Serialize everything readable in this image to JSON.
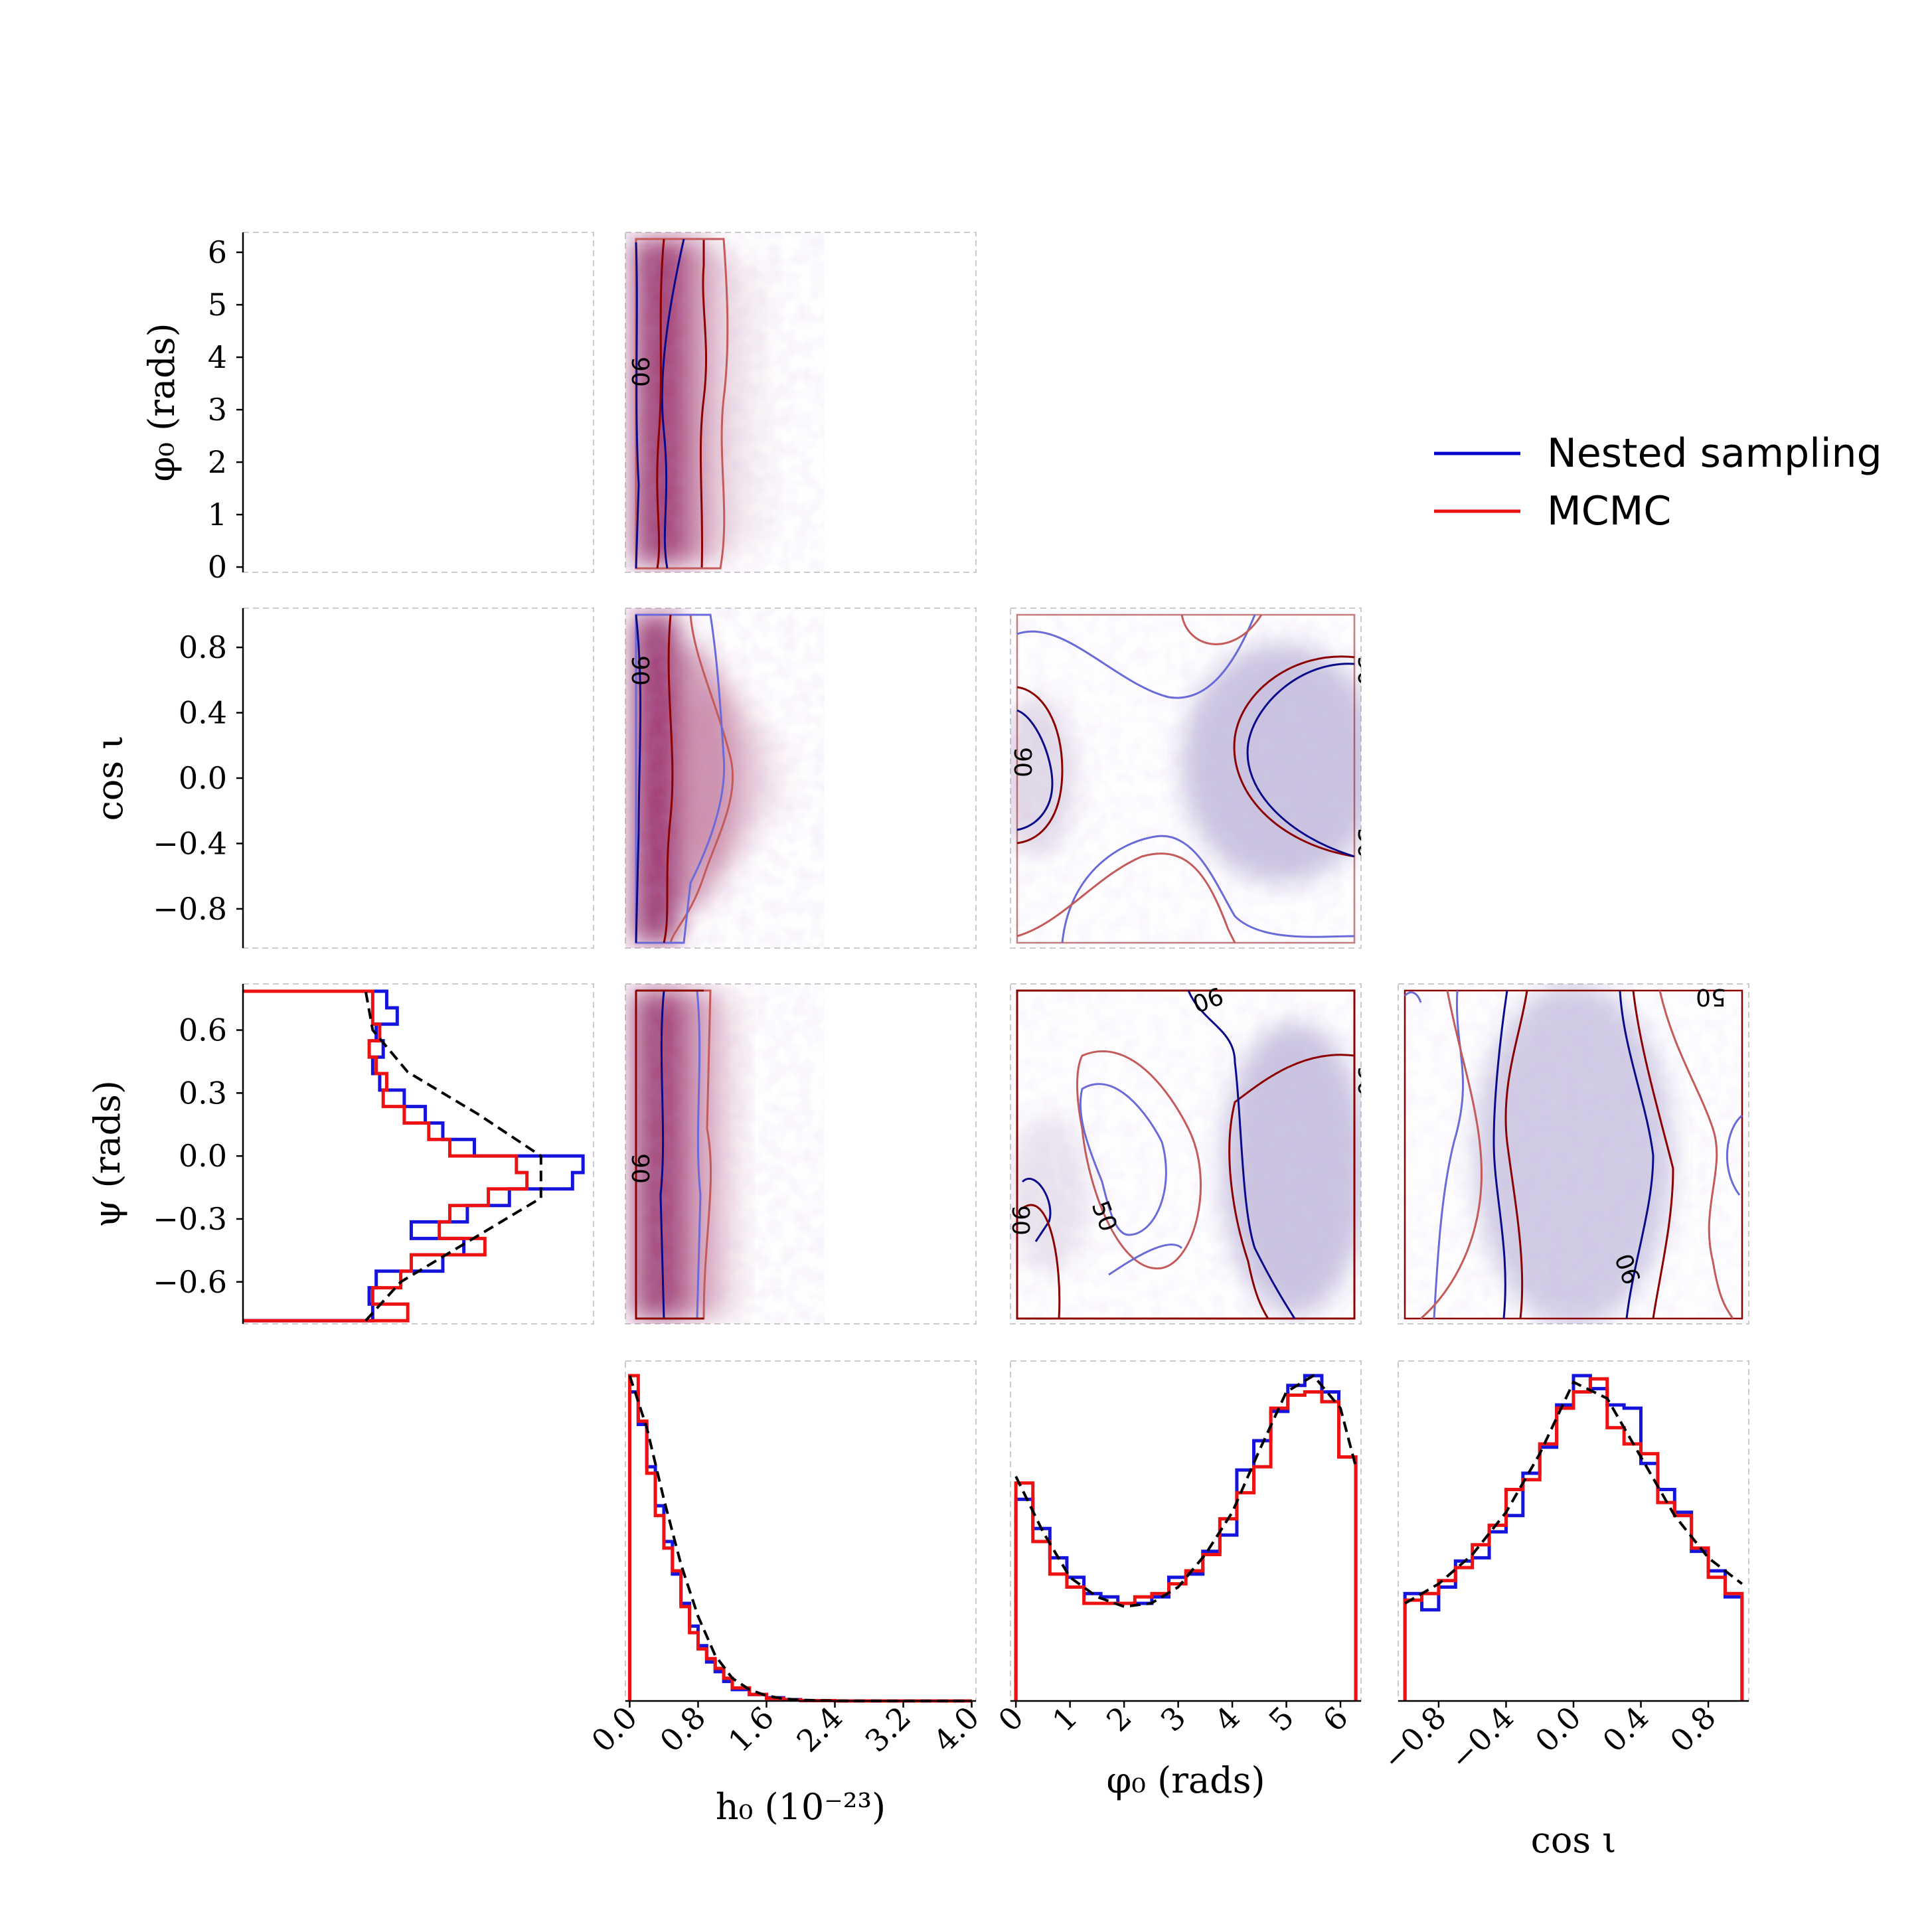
{
  "legend": {
    "position": "upper-right",
    "entries": [
      {
        "label": "Nested sampling",
        "color": "#0000cc"
      },
      {
        "label": "MCMC",
        "color": "#ee1111"
      }
    ]
  },
  "colors": {
    "nested": "#1414dd",
    "mcmc": "#ee1111",
    "nested_contour_dark": "#0a0a8a",
    "mcmc_contour_dark": "#8b0000",
    "nested_contour_light": "#6a6ad8",
    "mcmc_contour_light": "#c45a5a",
    "truth_curve": "#000000",
    "frame": "#bbbbbb"
  },
  "chart_data": {
    "type": "corner",
    "grid": false,
    "parameters": [
      {
        "key": "h0",
        "label": "h₀ (10⁻²³)",
        "ticks": [
          "0.0",
          "0.8",
          "1.6",
          "2.4",
          "3.2",
          "4.0"
        ],
        "range": [
          -0.05,
          4.05
        ]
      },
      {
        "key": "phi0",
        "label": "φ₀ (rads)",
        "ticks": [
          "0",
          "1",
          "2",
          "3",
          "4",
          "5",
          "6"
        ],
        "range": [
          -0.1,
          6.38
        ]
      },
      {
        "key": "cosi",
        "label": "cos ι",
        "ticks": [
          "−0.8",
          "−0.4",
          "0.0",
          "0.4",
          "0.8"
        ],
        "range": [
          -1.04,
          1.04
        ]
      },
      {
        "key": "psi",
        "label": "ψ (rads)",
        "ticks": [
          "−0.6",
          "−0.3",
          "0.0",
          "0.3",
          "0.6"
        ],
        "range": [
          -0.8,
          0.82
        ]
      }
    ],
    "contour_labels": [
      "90",
      "50"
    ],
    "histograms": {
      "h0": {
        "bin_edges": [
          0.0,
          0.1,
          0.2,
          0.3,
          0.4,
          0.5,
          0.6,
          0.7,
          0.8,
          0.9,
          1.0,
          1.1,
          1.2,
          1.4,
          1.6,
          1.8,
          2.0,
          2.4,
          4.0
        ],
        "nested": [
          0.95,
          0.85,
          0.72,
          0.6,
          0.49,
          0.39,
          0.3,
          0.23,
          0.17,
          0.12,
          0.09,
          0.06,
          0.035,
          0.02,
          0.01,
          0.004,
          0.001,
          0.0
        ],
        "mcmc": [
          1.0,
          0.86,
          0.7,
          0.57,
          0.47,
          0.4,
          0.29,
          0.21,
          0.16,
          0.13,
          0.1,
          0.07,
          0.04,
          0.02,
          0.008,
          0.003,
          0.001,
          0.0
        ],
        "truth_x": [
          0.0,
          0.2,
          0.4,
          0.6,
          0.8,
          1.0,
          1.2,
          1.4,
          1.6,
          1.8,
          2.0,
          2.4,
          3.0,
          4.0
        ],
        "truth_y": [
          1.0,
          0.84,
          0.62,
          0.42,
          0.26,
          0.14,
          0.07,
          0.035,
          0.016,
          0.007,
          0.003,
          0.0005,
          0.0,
          0.0
        ]
      },
      "phi0": {
        "bin_edges": [
          0.0,
          0.314,
          0.628,
          0.942,
          1.257,
          1.571,
          1.885,
          2.199,
          2.513,
          2.827,
          3.142,
          3.456,
          3.77,
          4.084,
          4.398,
          4.712,
          5.027,
          5.341,
          5.655,
          5.969,
          6.283
        ],
        "nested": [
          0.62,
          0.53,
          0.44,
          0.38,
          0.33,
          0.32,
          0.3,
          0.3,
          0.32,
          0.38,
          0.39,
          0.46,
          0.51,
          0.71,
          0.8,
          0.89,
          0.97,
          1.0,
          0.95,
          0.75
        ],
        "mcmc": [
          0.67,
          0.49,
          0.39,
          0.35,
          0.3,
          0.3,
          0.3,
          0.32,
          0.33,
          0.36,
          0.4,
          0.45,
          0.56,
          0.64,
          0.72,
          0.9,
          0.94,
          0.95,
          0.92,
          0.75
        ],
        "truth_x": [
          0.0,
          0.5,
          1.0,
          1.5,
          2.0,
          2.5,
          3.0,
          3.5,
          4.0,
          4.5,
          5.0,
          5.5,
          6.0,
          6.283
        ],
        "truth_y": [
          0.69,
          0.52,
          0.38,
          0.32,
          0.29,
          0.3,
          0.35,
          0.45,
          0.58,
          0.77,
          0.95,
          1.0,
          0.9,
          0.72
        ]
      },
      "cosi": {
        "bin_edges": [
          -1.0,
          -0.9,
          -0.8,
          -0.7,
          -0.6,
          -0.5,
          -0.4,
          -0.3,
          -0.2,
          -0.1,
          0.0,
          0.1,
          0.2,
          0.3,
          0.4,
          0.5,
          0.6,
          0.7,
          0.8,
          0.9,
          1.0
        ],
        "nested": [
          0.33,
          0.28,
          0.35,
          0.43,
          0.44,
          0.52,
          0.57,
          0.7,
          0.78,
          0.91,
          1.0,
          0.96,
          0.91,
          0.9,
          0.73,
          0.65,
          0.58,
          0.46,
          0.4,
          0.32
        ],
        "mcmc": [
          0.31,
          0.33,
          0.37,
          0.41,
          0.48,
          0.54,
          0.65,
          0.68,
          0.79,
          0.9,
          0.95,
          0.99,
          0.84,
          0.79,
          0.76,
          0.61,
          0.57,
          0.47,
          0.38,
          0.33
        ],
        "truth_x": [
          -1.0,
          -0.8,
          -0.6,
          -0.4,
          -0.2,
          0.0,
          0.2,
          0.4,
          0.6,
          0.8,
          1.0
        ],
        "truth_y": [
          0.3,
          0.36,
          0.45,
          0.58,
          0.76,
          0.98,
          0.93,
          0.75,
          0.57,
          0.44,
          0.36
        ]
      },
      "psi": {
        "bin_edges": [
          -0.785,
          -0.706,
          -0.628,
          -0.549,
          -0.471,
          -0.393,
          -0.314,
          -0.236,
          -0.157,
          -0.079,
          0.0,
          0.079,
          0.157,
          0.236,
          0.314,
          0.393,
          0.471,
          0.549,
          0.628,
          0.706,
          0.785
        ],
        "nested": [
          0.02,
          0.01,
          0.03,
          0.22,
          0.28,
          0.13,
          0.29,
          0.41,
          0.59,
          0.62,
          0.31,
          0.22,
          0.17,
          0.11,
          0.04,
          0.02,
          0.05,
          0.03,
          0.09,
          0.06
        ],
        "mcmc": [
          0.12,
          0.02,
          0.1,
          0.13,
          0.34,
          0.21,
          0.24,
          0.35,
          0.46,
          0.43,
          0.24,
          0.18,
          0.11,
          0.05,
          0.06,
          0.03,
          0.01,
          0.04,
          0.02,
          0.02
        ],
        "truth_x": [
          -0.785,
          -0.6,
          -0.4,
          -0.2,
          0.0,
          0.2,
          0.4,
          0.6,
          0.785
        ],
        "truth_y": [
          0.0,
          0.1,
          0.3,
          0.5,
          0.5,
          0.32,
          0.12,
          0.02,
          0.0
        ]
      }
    }
  }
}
